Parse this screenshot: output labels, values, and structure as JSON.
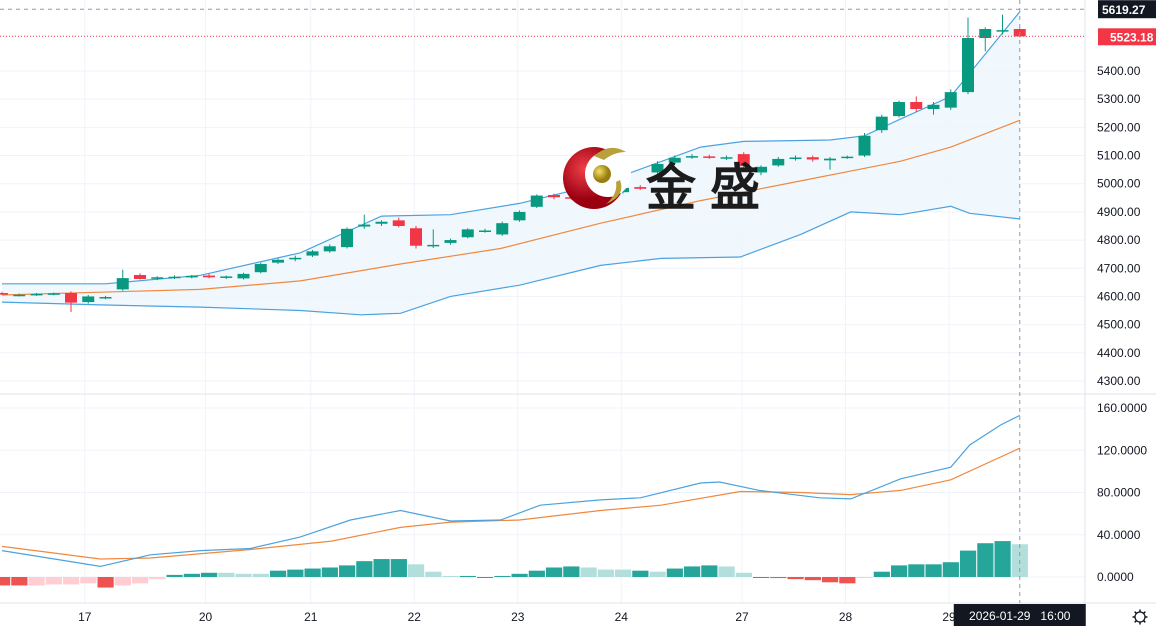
{
  "watermark": {
    "text": "金盛"
  },
  "colors": {
    "up": "#089981",
    "down": "#f23645",
    "upper_band": "#4aa3df",
    "mid_band": "#f0883e",
    "hist_up": "#26a69a",
    "hist_up_light": "#b2dfdb",
    "hist_down": "#ef5350",
    "hist_down_light": "#ffcdd2",
    "band_fill": "#eef6fd"
  },
  "crosshair": {
    "price_label": "5619.27",
    "time_label": "2026-01-29   16:00"
  },
  "last_price": {
    "label": "5523.18",
    "value": 5523.18
  },
  "settings_icon": "gear-icon",
  "chart_data": [
    {
      "type": "candlestick",
      "title": "",
      "ylim": [
        4250,
        5640
      ],
      "y_ticks": [
        "5400.00",
        "5300.00",
        "5200.00",
        "5100.00",
        "5000.00",
        "4900.00",
        "4800.00",
        "4700.00",
        "4600.00",
        "4500.00",
        "4400.00",
        "4300.00"
      ],
      "x_ticks": [
        {
          "label": "17",
          "index": 4.8
        },
        {
          "label": "20",
          "index": 11.8
        },
        {
          "label": "21",
          "index": 17.9
        },
        {
          "label": "22",
          "index": 23.9
        },
        {
          "label": "23",
          "index": 29.9
        },
        {
          "label": "24",
          "index": 35.9
        },
        {
          "label": "27",
          "index": 42.9
        },
        {
          "label": "28",
          "index": 48.9
        },
        {
          "label": "29",
          "index": 54.9
        }
      ],
      "candles_ohlc": [
        [
          4612,
          4616,
          4605,
          4608
        ],
        [
          4603,
          4610,
          4600,
          4606
        ],
        [
          4606,
          4612,
          4602,
          4609
        ],
        [
          4609,
          4614,
          4604,
          4611
        ],
        [
          4612,
          4618,
          4545,
          4578
        ],
        [
          4580,
          4605,
          4575,
          4600
        ],
        [
          4595,
          4602,
          4590,
          4598
        ],
        [
          4625,
          4695,
          4620,
          4665
        ],
        [
          4676,
          4682,
          4660,
          4662
        ],
        [
          4664,
          4672,
          4658,
          4668
        ],
        [
          4668,
          4675,
          4662,
          4670
        ],
        [
          4670,
          4676,
          4664,
          4673
        ],
        [
          4674,
          4680,
          4664,
          4668
        ],
        [
          4668,
          4674,
          4662,
          4671
        ],
        [
          4664,
          4684,
          4660,
          4680
        ],
        [
          4686,
          4720,
          4682,
          4715
        ],
        [
          4720,
          4735,
          4715,
          4730
        ],
        [
          4733,
          4745,
          4725,
          4737
        ],
        [
          4745,
          4765,
          4740,
          4760
        ],
        [
          4760,
          4785,
          4755,
          4778
        ],
        [
          4775,
          4845,
          4770,
          4840
        ],
        [
          4848,
          4890,
          4840,
          4855
        ],
        [
          4858,
          4870,
          4850,
          4865
        ],
        [
          4870,
          4880,
          4845,
          4850
        ],
        [
          4842,
          4850,
          4770,
          4780
        ],
        [
          4780,
          4838,
          4772,
          4783
        ],
        [
          4790,
          4805,
          4784,
          4800
        ],
        [
          4810,
          4842,
          4806,
          4838
        ],
        [
          4832,
          4840,
          4826,
          4834
        ],
        [
          4820,
          4866,
          4815,
          4860
        ],
        [
          4870,
          4905,
          4865,
          4900
        ],
        [
          4918,
          4962,
          4914,
          4958
        ],
        [
          4960,
          4965,
          4945,
          4952
        ],
        [
          4952,
          4960,
          4944,
          4950
        ],
        [
          4955,
          4962,
          4940,
          4945
        ],
        [
          4950,
          4975,
          4945,
          4968
        ],
        [
          4970,
          4992,
          4965,
          4985
        ],
        [
          4988,
          4995,
          4978,
          4982
        ],
        [
          5040,
          5080,
          5035,
          5070
        ],
        [
          5075,
          5100,
          5070,
          5092
        ],
        [
          5095,
          5105,
          5088,
          5098
        ],
        [
          5097,
          5103,
          5088,
          5092
        ],
        [
          5092,
          5100,
          5084,
          5094
        ],
        [
          5105,
          5112,
          5055,
          5062
        ],
        [
          5040,
          5065,
          5030,
          5060
        ],
        [
          5065,
          5095,
          5060,
          5088
        ],
        [
          5090,
          5100,
          5082,
          5093
        ],
        [
          5094,
          5100,
          5078,
          5086
        ],
        [
          5083,
          5095,
          5050,
          5089
        ],
        [
          5092,
          5100,
          5088,
          5096
        ],
        [
          5100,
          5180,
          5095,
          5170
        ],
        [
          5190,
          5245,
          5180,
          5238
        ],
        [
          5240,
          5295,
          5235,
          5290
        ],
        [
          5290,
          5310,
          5255,
          5265
        ],
        [
          5265,
          5290,
          5245,
          5280
        ],
        [
          5270,
          5335,
          5262,
          5325
        ],
        [
          5325,
          5590,
          5318,
          5517
        ],
        [
          5517,
          5555,
          5470,
          5549
        ],
        [
          5540,
          5600,
          5530,
          5545
        ],
        [
          5549,
          5552,
          5520,
          5523
        ]
      ],
      "bollinger": {
        "upper": [
          [
            0,
            4645
          ],
          [
            6,
            4645
          ],
          [
            11.5,
            4675
          ],
          [
            17.3,
            4755
          ],
          [
            22,
            4885
          ],
          [
            26,
            4890
          ],
          [
            30,
            4930
          ],
          [
            34.7,
            5000
          ],
          [
            40.5,
            5130
          ],
          [
            43,
            5150
          ],
          [
            48,
            5155
          ],
          [
            50,
            5170
          ],
          [
            52.1,
            5230
          ],
          [
            55,
            5310
          ],
          [
            59,
            5610
          ]
        ],
        "middle": [
          [
            0,
            4605
          ],
          [
            5.7,
            4615
          ],
          [
            11.5,
            4625
          ],
          [
            17.3,
            4655
          ],
          [
            23.1,
            4715
          ],
          [
            28.9,
            4770
          ],
          [
            34.7,
            4860
          ],
          [
            40.5,
            4940
          ],
          [
            46.3,
            5010
          ],
          [
            52.1,
            5080
          ],
          [
            55,
            5130
          ],
          [
            59,
            5225
          ]
        ],
        "lower": [
          [
            0,
            4580
          ],
          [
            5.7,
            4570
          ],
          [
            11.5,
            4562
          ],
          [
            17.3,
            4550
          ],
          [
            20.8,
            4535
          ],
          [
            23.1,
            4540
          ],
          [
            26,
            4600
          ],
          [
            30,
            4640
          ],
          [
            34.7,
            4710
          ],
          [
            38.2,
            4735
          ],
          [
            42.8,
            4740
          ],
          [
            46.3,
            4820
          ],
          [
            49.2,
            4900
          ],
          [
            52.1,
            4890
          ],
          [
            55,
            4920
          ],
          [
            56.1,
            4895
          ],
          [
            59,
            4875
          ]
        ]
      }
    },
    {
      "type": "macd",
      "ylim": [
        -20,
        170
      ],
      "y_ticks": [
        "160.0000",
        "120.0000",
        "80.0000",
        "40.0000",
        "0.0000"
      ],
      "fast_line": [
        [
          0,
          25
        ],
        [
          5.7,
          10
        ],
        [
          8.6,
          21
        ],
        [
          11.5,
          25
        ],
        [
          14.4,
          27
        ],
        [
          17.3,
          38
        ],
        [
          20.2,
          54
        ],
        [
          23.1,
          63
        ],
        [
          26,
          53
        ],
        [
          28.9,
          54
        ],
        [
          31.2,
          68
        ],
        [
          34.7,
          73
        ],
        [
          37,
          75
        ],
        [
          40.5,
          89
        ],
        [
          41.6,
          90
        ],
        [
          43.9,
          82
        ],
        [
          47.4,
          75
        ],
        [
          49.2,
          74
        ],
        [
          52.1,
          93
        ],
        [
          55,
          104
        ],
        [
          56.1,
          125
        ],
        [
          57.9,
          144
        ],
        [
          59,
          153
        ]
      ],
      "signal_line": [
        [
          0,
          29
        ],
        [
          5.7,
          17
        ],
        [
          8.6,
          18
        ],
        [
          14.4,
          26
        ],
        [
          19.1,
          34
        ],
        [
          23.1,
          47
        ],
        [
          26,
          52
        ],
        [
          30,
          54
        ],
        [
          34.7,
          63
        ],
        [
          38.2,
          68
        ],
        [
          42.8,
          81
        ],
        [
          46.3,
          80
        ],
        [
          49.2,
          78
        ],
        [
          52.1,
          82
        ],
        [
          55,
          92
        ],
        [
          59,
          122
        ]
      ],
      "histogram": [
        -8,
        -8,
        -8,
        -7,
        -7,
        -6,
        -10,
        -8,
        -6,
        -2,
        2,
        3,
        4,
        4,
        3,
        3,
        6,
        7,
        8,
        9,
        11,
        15,
        17,
        17,
        12,
        5,
        1,
        1,
        0,
        1,
        3,
        6,
        9,
        10,
        9,
        7,
        7,
        6,
        5,
        8,
        10,
        11,
        10,
        4,
        0,
        -1,
        -2,
        -3,
        -5,
        -6,
        -1,
        5,
        11,
        12,
        12,
        14,
        25,
        32,
        34,
        31
      ],
      "histogram_shade": [
        "d",
        "d",
        "l",
        "l",
        "l",
        "l",
        "d",
        "l",
        "l",
        "l",
        "d",
        "d",
        "d",
        "l",
        "l",
        "l",
        "d",
        "d",
        "d",
        "d",
        "d",
        "d",
        "d",
        "d",
        "l",
        "l",
        "l",
        "d",
        "d",
        "d",
        "d",
        "d",
        "d",
        "d",
        "l",
        "l",
        "l",
        "d",
        "l",
        "d",
        "d",
        "d",
        "l",
        "l",
        "d",
        "d",
        "d",
        "d",
        "d",
        "d",
        "l",
        "d",
        "d",
        "d",
        "d",
        "d",
        "d",
        "d",
        "d",
        "l"
      ]
    }
  ]
}
